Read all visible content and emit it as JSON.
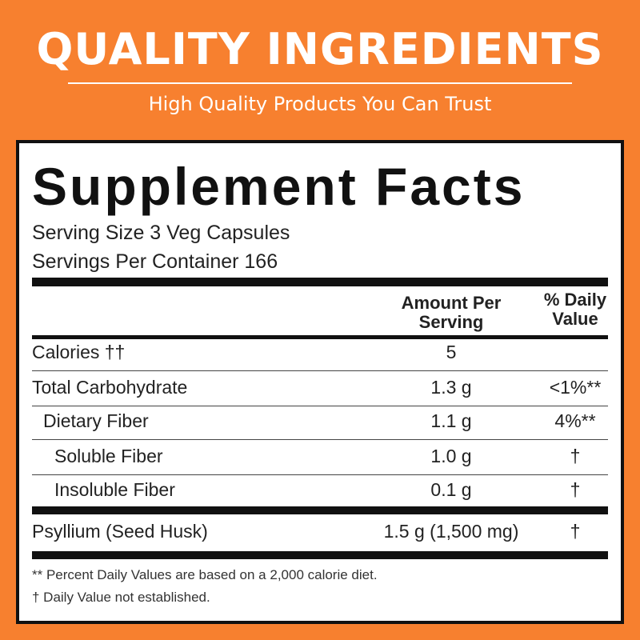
{
  "header": {
    "title": "QUALITY INGREDIENTS",
    "subtitle": "High Quality Products You Can Trust"
  },
  "panel": {
    "title": "Supplement Facts",
    "serving_size": "Serving Size 3 Veg Capsules",
    "servings_per_container": "Servings Per Container 166"
  },
  "table": {
    "columns": [
      "Amount Per Serving",
      "% Daily Value"
    ],
    "rows": [
      {
        "name": "Calories ††",
        "amount": "5"
      },
      {
        "name": "Total Carbohydrate",
        "amount": "1.3 g",
        "dv": "<1%**"
      },
      {
        "name": "Dietary Fiber",
        "amount": "1.1 g",
        "dv": "4%**"
      },
      {
        "name": "Soluble Fiber",
        "amount": "1.0 g",
        "dv": "†"
      },
      {
        "name": "Insoluble Fiber",
        "amount": "0.1 g",
        "dv": "†"
      },
      {
        "name": "Psyllium (Seed Husk)",
        "amount": "1.5 g (1,500 mg)",
        "dv": "†"
      }
    ]
  },
  "footnotes": [
    "** Percent Daily Values are based on a 2,000 calorie diet.",
    "† Daily Value not established."
  ]
}
